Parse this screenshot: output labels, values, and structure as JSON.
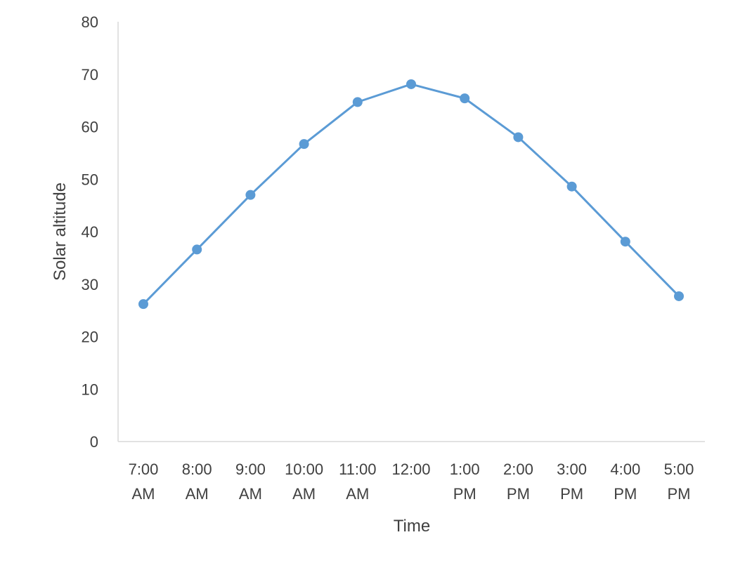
{
  "chart_data": {
    "type": "line",
    "xlabel": "Time",
    "ylabel": "Solar altitude",
    "ylim": [
      0,
      80
    ],
    "yticks": [
      0,
      10,
      20,
      30,
      40,
      50,
      60,
      70,
      80
    ],
    "grid": false,
    "categories": [
      [
        "7:00",
        "AM"
      ],
      [
        "8:00",
        "AM"
      ],
      [
        "9:00",
        "AM"
      ],
      [
        "10:00",
        "AM"
      ],
      [
        "11:00",
        "AM"
      ],
      [
        "12:00",
        ""
      ],
      [
        "1:00",
        "PM"
      ],
      [
        "2:00",
        "PM"
      ],
      [
        "3:00",
        "PM"
      ],
      [
        "4:00",
        "PM"
      ],
      [
        "5:00",
        "PM"
      ]
    ],
    "series": [
      {
        "color": "#5b9bd5",
        "values": [
          26.2,
          36.6,
          47.0,
          56.7,
          64.7,
          68.1,
          65.4,
          58.0,
          48.6,
          38.1,
          27.7
        ]
      }
    ]
  }
}
